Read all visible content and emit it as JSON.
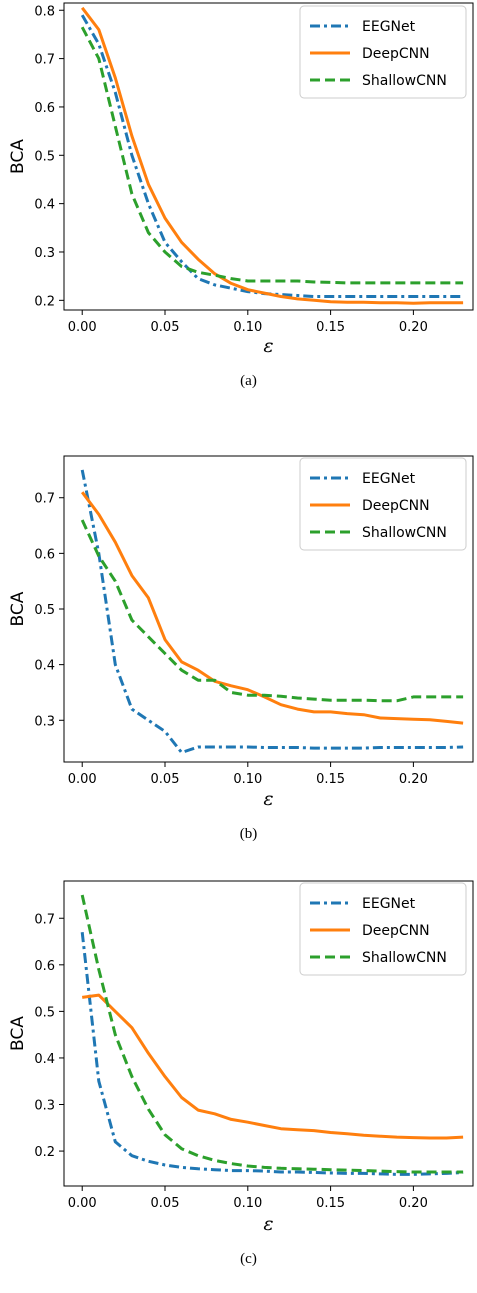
{
  "chart_data": [
    {
      "type": "line",
      "caption": "(a)",
      "xlabel": "ε",
      "ylabel": "BCA",
      "xlim": [
        -0.011,
        0.236
      ],
      "ylim": [
        0.18,
        0.815
      ],
      "xticks": [
        0.0,
        0.05,
        0.1,
        0.15,
        0.2
      ],
      "xtick_labels": [
        "0.00",
        "0.05",
        "0.10",
        "0.15",
        "0.20"
      ],
      "yticks": [
        0.2,
        0.3,
        0.4,
        0.5,
        0.6,
        0.7,
        0.8
      ],
      "ytick_labels": [
        "0.2",
        "0.3",
        "0.4",
        "0.5",
        "0.6",
        "0.7",
        "0.8"
      ],
      "legend_position": "top-right",
      "grid": false,
      "x": [
        0.0,
        0.01,
        0.02,
        0.03,
        0.04,
        0.05,
        0.06,
        0.07,
        0.08,
        0.09,
        0.1,
        0.11,
        0.12,
        0.13,
        0.14,
        0.15,
        0.16,
        0.17,
        0.18,
        0.19,
        0.2,
        0.21,
        0.22,
        0.23
      ],
      "series": [
        {
          "name": "EEGNet",
          "color": "#1f77b4",
          "style": "dashdot",
          "values": [
            0.79,
            0.73,
            0.63,
            0.5,
            0.4,
            0.32,
            0.28,
            0.245,
            0.232,
            0.225,
            0.218,
            0.214,
            0.212,
            0.21,
            0.208,
            0.208,
            0.208,
            0.208,
            0.208,
            0.208,
            0.208,
            0.208,
            0.208,
            0.208
          ]
        },
        {
          "name": "DeepCNN",
          "color": "#ff7f0e",
          "style": "solid",
          "values": [
            0.805,
            0.76,
            0.66,
            0.54,
            0.44,
            0.37,
            0.32,
            0.285,
            0.255,
            0.235,
            0.222,
            0.215,
            0.208,
            0.203,
            0.2,
            0.197,
            0.196,
            0.196,
            0.195,
            0.195,
            0.194,
            0.195,
            0.195,
            0.195
          ]
        },
        {
          "name": "ShallowCNN",
          "color": "#2ca02c",
          "style": "dashed",
          "values": [
            0.765,
            0.7,
            0.56,
            0.42,
            0.34,
            0.3,
            0.27,
            0.258,
            0.252,
            0.245,
            0.24,
            0.24,
            0.24,
            0.24,
            0.238,
            0.237,
            0.236,
            0.236,
            0.236,
            0.236,
            0.236,
            0.236,
            0.236,
            0.236
          ]
        }
      ]
    },
    {
      "type": "line",
      "caption": "(b)",
      "xlabel": "ε",
      "ylabel": "BCA",
      "xlim": [
        -0.011,
        0.236
      ],
      "ylim": [
        0.225,
        0.775
      ],
      "xticks": [
        0.0,
        0.05,
        0.1,
        0.15,
        0.2
      ],
      "xtick_labels": [
        "0.00",
        "0.05",
        "0.10",
        "0.15",
        "0.20"
      ],
      "yticks": [
        0.3,
        0.4,
        0.5,
        0.6,
        0.7
      ],
      "ytick_labels": [
        "0.3",
        "0.4",
        "0.5",
        "0.6",
        "0.7"
      ],
      "legend_position": "top-right",
      "grid": false,
      "x": [
        0.0,
        0.01,
        0.02,
        0.03,
        0.04,
        0.05,
        0.06,
        0.07,
        0.08,
        0.09,
        0.1,
        0.11,
        0.12,
        0.13,
        0.14,
        0.15,
        0.16,
        0.17,
        0.18,
        0.19,
        0.2,
        0.21,
        0.22,
        0.23
      ],
      "series": [
        {
          "name": "EEGNet",
          "color": "#1f77b4",
          "style": "dashdot",
          "values": [
            0.75,
            0.6,
            0.4,
            0.32,
            0.3,
            0.28,
            0.242,
            0.252,
            0.252,
            0.252,
            0.252,
            0.251,
            0.251,
            0.251,
            0.25,
            0.25,
            0.25,
            0.25,
            0.251,
            0.251,
            0.251,
            0.251,
            0.251,
            0.252
          ]
        },
        {
          "name": "DeepCNN",
          "color": "#ff7f0e",
          "style": "solid",
          "values": [
            0.71,
            0.67,
            0.62,
            0.56,
            0.52,
            0.445,
            0.405,
            0.39,
            0.37,
            0.362,
            0.355,
            0.342,
            0.328,
            0.32,
            0.315,
            0.315,
            0.312,
            0.31,
            0.304,
            0.303,
            0.302,
            0.301,
            0.298,
            0.295
          ]
        },
        {
          "name": "ShallowCNN",
          "color": "#2ca02c",
          "style": "dashed",
          "values": [
            0.66,
            0.595,
            0.55,
            0.48,
            0.45,
            0.42,
            0.39,
            0.372,
            0.372,
            0.35,
            0.345,
            0.345,
            0.343,
            0.34,
            0.338,
            0.336,
            0.336,
            0.336,
            0.335,
            0.335,
            0.342,
            0.342,
            0.342,
            0.342
          ]
        }
      ]
    },
    {
      "type": "line",
      "caption": "(c)",
      "xlabel": "ε",
      "ylabel": "BCA",
      "xlim": [
        -0.011,
        0.236
      ],
      "ylim": [
        0.125,
        0.78
      ],
      "xticks": [
        0.0,
        0.05,
        0.1,
        0.15,
        0.2
      ],
      "xtick_labels": [
        "0.00",
        "0.05",
        "0.10",
        "0.15",
        "0.20"
      ],
      "yticks": [
        0.2,
        0.3,
        0.4,
        0.5,
        0.6,
        0.7
      ],
      "ytick_labels": [
        "0.2",
        "0.3",
        "0.4",
        "0.5",
        "0.6",
        "0.7"
      ],
      "legend_position": "top-right",
      "grid": false,
      "x": [
        0.0,
        0.01,
        0.02,
        0.03,
        0.04,
        0.05,
        0.06,
        0.07,
        0.08,
        0.09,
        0.1,
        0.11,
        0.12,
        0.13,
        0.14,
        0.15,
        0.16,
        0.17,
        0.18,
        0.19,
        0.2,
        0.21,
        0.22,
        0.23
      ],
      "series": [
        {
          "name": "EEGNet",
          "color": "#1f77b4",
          "style": "dashdot",
          "values": [
            0.67,
            0.35,
            0.22,
            0.19,
            0.178,
            0.17,
            0.165,
            0.162,
            0.16,
            0.158,
            0.158,
            0.157,
            0.155,
            0.155,
            0.154,
            0.153,
            0.152,
            0.152,
            0.151,
            0.15,
            0.15,
            0.151,
            0.152,
            0.154
          ]
        },
        {
          "name": "DeepCNN",
          "color": "#ff7f0e",
          "style": "solid",
          "values": [
            0.53,
            0.535,
            0.5,
            0.465,
            0.41,
            0.36,
            0.315,
            0.288,
            0.28,
            0.268,
            0.262,
            0.255,
            0.248,
            0.246,
            0.244,
            0.24,
            0.237,
            0.234,
            0.232,
            0.23,
            0.229,
            0.228,
            0.228,
            0.23
          ]
        },
        {
          "name": "ShallowCNN",
          "color": "#2ca02c",
          "style": "dashed",
          "values": [
            0.75,
            0.59,
            0.45,
            0.36,
            0.29,
            0.235,
            0.205,
            0.19,
            0.18,
            0.173,
            0.168,
            0.165,
            0.163,
            0.162,
            0.161,
            0.16,
            0.159,
            0.158,
            0.157,
            0.156,
            0.155,
            0.155,
            0.155,
            0.155
          ]
        }
      ]
    }
  ]
}
